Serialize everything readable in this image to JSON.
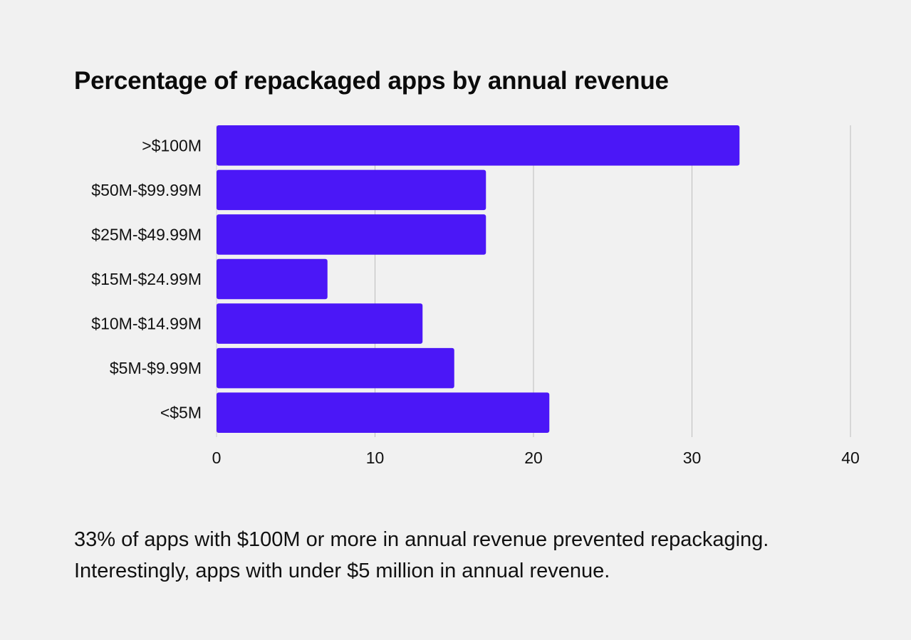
{
  "chart_data": {
    "type": "bar",
    "orientation": "horizontal",
    "title": "Percentage of repackaged apps by annual revenue",
    "categories": [
      ">$100M",
      "$50M-$99.99M",
      "$25M-$49.99M",
      "$15M-$24.99M",
      "$10M-$14.99M",
      "$5M-$9.99M",
      "<$5M"
    ],
    "values": [
      33,
      17,
      17,
      7,
      13,
      15,
      21
    ],
    "xlabel": "",
    "ylabel": "",
    "xlim": [
      0,
      40
    ],
    "xticks": [
      0,
      10,
      20,
      30,
      40
    ],
    "grid": "vertical",
    "bar_color": "#4b17f7",
    "grid_color": "#bdbdbd"
  },
  "caption": "33% of apps with $100M or more in annual revenue prevented repackaging. Interestingly, apps with under $5 million in annual revenue."
}
